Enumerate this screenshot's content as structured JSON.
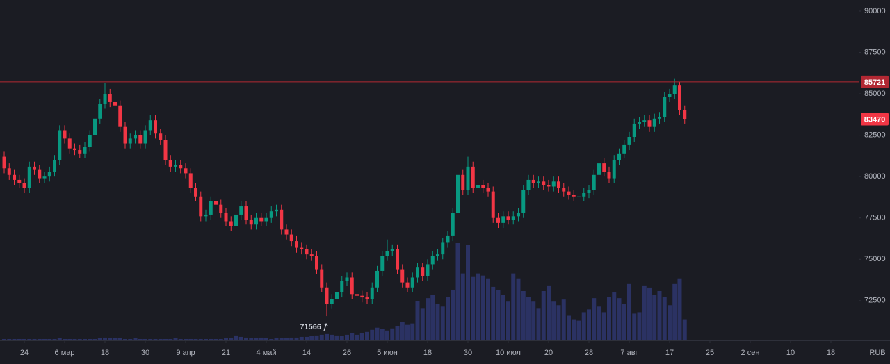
{
  "chart_data": {
    "type": "candlestick",
    "currency": "RUB",
    "up_color": "#089981",
    "down_color": "#f23645",
    "volume_color": "#2b3263",
    "grid": false,
    "ylim": [
      70100,
      90670
    ],
    "yticks": [
      72500,
      75000,
      77500,
      80000,
      82500,
      85000,
      87500,
      90000
    ],
    "xlim": [
      -0.83,
      169.52
    ],
    "xticks": [
      {
        "value": 4,
        "label": "24"
      },
      {
        "value": 12,
        "label": "6 мар"
      },
      {
        "value": 20,
        "label": "18"
      },
      {
        "value": 28,
        "label": "30"
      },
      {
        "value": 36,
        "label": "9 апр"
      },
      {
        "value": 44,
        "label": "21"
      },
      {
        "value": 52,
        "label": "4 май"
      },
      {
        "value": 60,
        "label": "14"
      },
      {
        "value": 68,
        "label": "26"
      },
      {
        "value": 76,
        "label": "5 июн"
      },
      {
        "value": 84,
        "label": "18"
      },
      {
        "value": 92,
        "label": "30"
      },
      {
        "value": 100,
        "label": "10 июл"
      },
      {
        "value": 108,
        "label": "20"
      },
      {
        "value": 116,
        "label": "28"
      },
      {
        "value": 124,
        "label": "7 авг"
      },
      {
        "value": 132,
        "label": "17"
      },
      {
        "value": 140,
        "label": "25"
      },
      {
        "value": 148,
        "label": "2 сен"
      },
      {
        "value": 156,
        "label": "10"
      },
      {
        "value": 164,
        "label": "18"
      }
    ],
    "price_lines": [
      {
        "value": 85721,
        "style": "solid",
        "color": "#b22833"
      },
      {
        "value": 83470,
        "style": "dotted",
        "color": "#f23645"
      }
    ],
    "low_annotation": {
      "value": 71566,
      "index": 64
    },
    "open": [
      81200,
      80500,
      80100,
      79800,
      79600,
      79300,
      80600,
      80400,
      79900,
      80000,
      80300,
      81000,
      82800,
      82300,
      81700,
      81600,
      81400,
      81800,
      82500,
      83500,
      84400,
      85000,
      84500,
      84300,
      83000,
      82000,
      82300,
      82500,
      82000,
      82800,
      83400,
      82600,
      82200,
      81000,
      80600,
      80700,
      80500,
      80200,
      79300,
      78800,
      77600,
      77700,
      78500,
      78300,
      77800,
      77300,
      77000,
      77700,
      78200,
      77400,
      77100,
      77500,
      77300,
      77500,
      77900,
      78000,
      76800,
      76500,
      76100,
      75700,
      75600,
      75300,
      75200,
      74400,
      73300,
      72300,
      72600,
      73000,
      73700,
      73900,
      72900,
      72800,
      72700,
      72600,
      73300,
      74300,
      75200,
      75500,
      75600,
      74400,
      73600,
      73300,
      73900,
      74500,
      74000,
      74700,
      75200,
      75300,
      76000,
      76400,
      77800,
      80100,
      79200,
      80600,
      79300,
      79500,
      79300,
      79100,
      77500,
      77200,
      77600,
      77400,
      77600,
      77800,
      79200,
      79800,
      79600,
      79700,
      79500,
      79400,
      79700,
      79300,
      79100,
      78900,
      78800,
      78800,
      79000,
      79200,
      80100,
      80800,
      80300,
      79900,
      81000,
      81400,
      81900,
      82400,
      83200,
      83300,
      83400,
      83000,
      83500,
      83600,
      84800,
      85000,
      85500,
      84000
    ],
    "high": [
      81500,
      80800,
      80400,
      80100,
      79900,
      80900,
      80900,
      80700,
      80300,
      80600,
      81300,
      83100,
      83100,
      82600,
      82000,
      81900,
      82100,
      82800,
      83800,
      84700,
      85650,
      85300,
      84800,
      84600,
      83300,
      82600,
      82800,
      82800,
      83100,
      83700,
      83700,
      82900,
      82500,
      81300,
      81000,
      81000,
      80800,
      80500,
      79600,
      79100,
      78000,
      78800,
      78800,
      78600,
      78100,
      77600,
      78000,
      78500,
      78500,
      77700,
      77800,
      77800,
      77800,
      78200,
      78300,
      78300,
      77100,
      76800,
      76400,
      76000,
      75900,
      75600,
      75500,
      74700,
      73600,
      72900,
      73300,
      74000,
      74200,
      74200,
      73200,
      73100,
      73000,
      73600,
      74600,
      75500,
      76200,
      75900,
      75900,
      74700,
      73900,
      74200,
      74800,
      74800,
      75000,
      75500,
      75600,
      76300,
      76700,
      78100,
      81000,
      80400,
      81200,
      80900,
      79800,
      79800,
      79600,
      79400,
      77800,
      77900,
      77900,
      77900,
      78100,
      79500,
      80100,
      80100,
      80000,
      80000,
      79800,
      80000,
      80000,
      79600,
      79400,
      79200,
      79100,
      79300,
      79500,
      80400,
      81100,
      81100,
      80600,
      81300,
      81700,
      82200,
      82700,
      83500,
      83600,
      83700,
      83700,
      83800,
      83900,
      85100,
      85300,
      85900,
      85721,
      84300
    ],
    "low": [
      80200,
      79800,
      79500,
      79300,
      79000,
      79000,
      80100,
      79600,
      79600,
      79700,
      80000,
      80700,
      82000,
      81400,
      81300,
      81100,
      81100,
      81500,
      82200,
      83200,
      84100,
      84200,
      84000,
      82700,
      81700,
      81700,
      82000,
      81700,
      81700,
      82500,
      82300,
      81900,
      80700,
      80300,
      80300,
      80200,
      79900,
      79000,
      78500,
      77300,
      77300,
      77400,
      78000,
      77500,
      77000,
      76700,
      76700,
      77400,
      77100,
      76800,
      76800,
      77000,
      77000,
      77200,
      77600,
      76500,
      76200,
      75800,
      75400,
      75300,
      75000,
      74900,
      74100,
      73000,
      71566,
      72000,
      72300,
      72700,
      73400,
      72600,
      72500,
      72400,
      72300,
      72300,
      73000,
      74000,
      74900,
      75200,
      74100,
      73300,
      73000,
      73000,
      73600,
      73700,
      73700,
      74400,
      74900,
      75000,
      75700,
      76100,
      77500,
      78900,
      78900,
      79000,
      79000,
      79000,
      78800,
      77200,
      76900,
      76900,
      77100,
      77100,
      77300,
      77500,
      78900,
      79300,
      79300,
      79200,
      79100,
      79100,
      79000,
      78800,
      78600,
      78500,
      78500,
      78500,
      78700,
      78900,
      79800,
      80000,
      79600,
      79600,
      80700,
      81100,
      81600,
      82100,
      82900,
      83000,
      82700,
      82700,
      83200,
      83300,
      84500,
      84700,
      83700,
      83200
    ],
    "close": [
      80500,
      80100,
      79800,
      79600,
      79300,
      80600,
      80400,
      79900,
      80000,
      80300,
      81000,
      82800,
      82300,
      81700,
      81600,
      81400,
      81800,
      82500,
      83500,
      84400,
      85000,
      84500,
      84300,
      83000,
      82000,
      82300,
      82500,
      82000,
      82800,
      83400,
      82600,
      82200,
      81000,
      80600,
      80700,
      80500,
      80200,
      79300,
      78800,
      77600,
      77700,
      78500,
      78300,
      77800,
      77300,
      77000,
      77700,
      78200,
      77400,
      77100,
      77500,
      77300,
      77500,
      77900,
      78000,
      76800,
      76500,
      76100,
      75700,
      75600,
      75300,
      75200,
      74400,
      73300,
      72300,
      72600,
      73000,
      73700,
      73900,
      72900,
      72800,
      72700,
      72600,
      73300,
      74300,
      75200,
      75500,
      75600,
      74400,
      73600,
      73300,
      73900,
      74500,
      74000,
      74700,
      75200,
      75300,
      76000,
      76400,
      77800,
      80100,
      79200,
      80600,
      79300,
      79500,
      79300,
      79100,
      77500,
      77200,
      77600,
      77400,
      77600,
      77800,
      79200,
      79800,
      79600,
      79700,
      79500,
      79400,
      79700,
      79300,
      79100,
      78900,
      78800,
      78800,
      79000,
      79200,
      80100,
      80800,
      80300,
      79900,
      81000,
      81400,
      81900,
      82400,
      83200,
      83300,
      83400,
      83000,
      83500,
      83600,
      84800,
      85000,
      85500,
      84000,
      83470
    ],
    "volume": [
      2,
      2,
      2,
      2,
      2,
      2,
      2,
      2,
      2,
      2,
      2,
      3,
      2,
      2,
      2,
      2,
      2,
      2,
      2,
      3,
      4,
      3,
      3,
      3,
      2,
      2,
      3,
      2,
      2,
      2,
      2,
      2,
      2,
      2,
      3,
      2,
      2,
      2,
      2,
      2,
      2,
      2,
      2,
      2,
      3,
      3,
      7,
      5,
      4,
      3,
      3,
      4,
      3,
      2,
      3,
      3,
      3,
      4,
      4,
      5,
      5,
      6,
      7,
      8,
      9,
      8,
      7,
      6,
      8,
      10,
      8,
      10,
      12,
      15,
      18,
      16,
      14,
      17,
      20,
      26,
      22,
      24,
      56,
      45,
      60,
      65,
      52,
      48,
      62,
      72,
      138,
      95,
      136,
      90,
      95,
      92,
      88,
      76,
      72,
      65,
      55,
      95,
      88,
      70,
      62,
      55,
      45,
      70,
      78,
      55,
      50,
      58,
      35,
      30,
      28,
      40,
      44,
      60,
      48,
      40,
      62,
      68,
      60,
      52,
      80,
      38,
      40,
      78,
      75,
      65,
      70,
      62,
      50,
      80,
      88,
      30
    ]
  }
}
